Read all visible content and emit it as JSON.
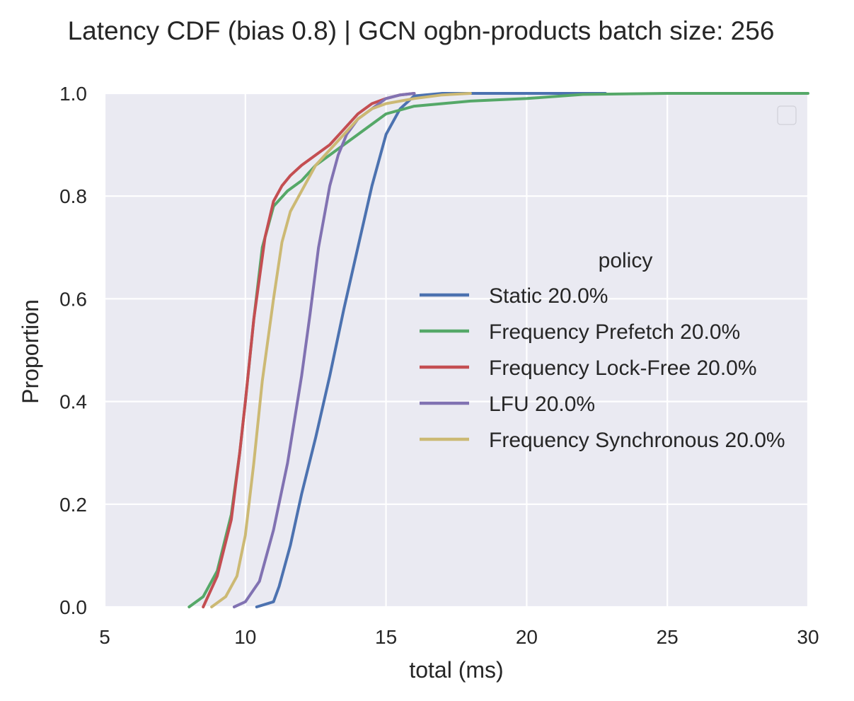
{
  "chart_data": {
    "type": "line",
    "title": "Latency CDF (bias 0.8) | GCN ogbn-products batch size: 256",
    "xlabel": "total (ms)",
    "ylabel": "Proportion",
    "xlim": [
      5,
      30
    ],
    "ylim": [
      0.0,
      1.0
    ],
    "xticks": [
      "5",
      "10",
      "15",
      "20",
      "25",
      "30"
    ],
    "yticks": [
      "0.0",
      "0.2",
      "0.4",
      "0.6",
      "0.8",
      "1.0"
    ],
    "grid": true,
    "background": "#EAEAF2",
    "legend": {
      "title": "policy",
      "placement": "center-right"
    },
    "series": [
      {
        "name": "Static 20.0%",
        "color": "#4C72B0",
        "x": [
          10.4,
          11.0,
          11.2,
          11.6,
          12.0,
          12.5,
          13.0,
          13.5,
          14.0,
          14.5,
          15.0,
          15.5,
          16.0,
          17.0,
          20.0,
          22.8
        ],
        "y": [
          0.0,
          0.01,
          0.04,
          0.12,
          0.22,
          0.33,
          0.45,
          0.58,
          0.7,
          0.82,
          0.92,
          0.97,
          0.995,
          1.0,
          1.0,
          1.0
        ]
      },
      {
        "name": "Frequency Prefetch 20.0%",
        "color": "#55A868",
        "x": [
          8.0,
          8.5,
          9.0,
          9.5,
          9.8,
          10.0,
          10.3,
          10.6,
          11.0,
          11.5,
          12.0,
          12.5,
          13.0,
          14.0,
          15.0,
          16.0,
          17.0,
          18.0,
          20.0,
          22.0,
          25.0,
          30.0
        ],
        "y": [
          0.0,
          0.02,
          0.07,
          0.18,
          0.3,
          0.4,
          0.56,
          0.7,
          0.78,
          0.81,
          0.83,
          0.86,
          0.88,
          0.92,
          0.96,
          0.975,
          0.98,
          0.985,
          0.99,
          0.998,
          1.0,
          1.0
        ]
      },
      {
        "name": "Frequency Lock-Free 20.0%",
        "color": "#C44E52",
        "x": [
          8.5,
          9.0,
          9.5,
          9.8,
          10.0,
          10.3,
          10.7,
          11.0,
          11.3,
          11.6,
          12.0,
          12.5,
          13.0,
          13.5,
          14.0,
          14.5,
          15.0,
          15.5,
          16.0
        ],
        "y": [
          0.0,
          0.06,
          0.17,
          0.3,
          0.4,
          0.56,
          0.72,
          0.79,
          0.82,
          0.84,
          0.86,
          0.88,
          0.9,
          0.93,
          0.96,
          0.98,
          0.99,
          0.997,
          1.0
        ]
      },
      {
        "name": "LFU 20.0%",
        "color": "#8172B2",
        "x": [
          9.6,
          10.0,
          10.5,
          11.0,
          11.5,
          12.0,
          12.3,
          12.6,
          13.0,
          13.3,
          13.6,
          14.0,
          14.5,
          15.0,
          15.5,
          16.0
        ],
        "y": [
          0.0,
          0.01,
          0.05,
          0.15,
          0.28,
          0.45,
          0.57,
          0.7,
          0.82,
          0.88,
          0.92,
          0.95,
          0.97,
          0.99,
          0.997,
          1.0
        ]
      },
      {
        "name": "Frequency Synchronous 20.0%",
        "color": "#CCB974",
        "x": [
          8.8,
          9.3,
          9.7,
          10.0,
          10.3,
          10.6,
          11.0,
          11.3,
          11.6,
          12.0,
          12.5,
          13.0,
          13.5,
          14.0,
          14.5,
          15.0,
          16.0,
          17.0,
          18.0
        ],
        "y": [
          0.0,
          0.02,
          0.06,
          0.14,
          0.28,
          0.44,
          0.6,
          0.71,
          0.77,
          0.81,
          0.86,
          0.89,
          0.92,
          0.95,
          0.97,
          0.98,
          0.99,
          0.997,
          1.0
        ]
      }
    ]
  }
}
